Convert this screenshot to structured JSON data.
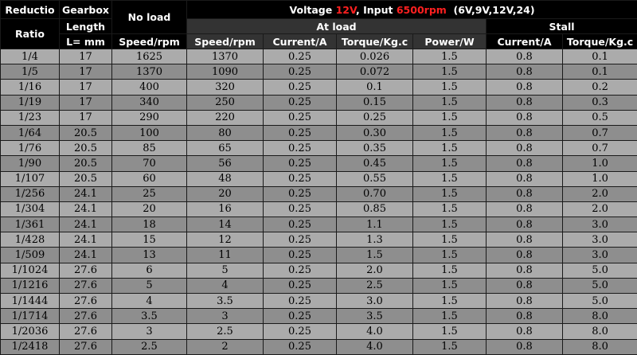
{
  "headers": {
    "ratio_top": "Reductio",
    "ratio_bottom": "Ratio",
    "gearbox_top": "Gearbox",
    "gearbox_mid": "Length",
    "gearbox_bottom": "L= mm",
    "noload_top": "No load",
    "noload_bottom": "Speed/rpm",
    "voltage_label": "Voltage ",
    "voltage_value": "12V",
    "input_label": ", Input ",
    "input_value": "6500rpm",
    "voltage_options": "(6V,9V,12V,24)",
    "atload": "At load",
    "stall": "Stall",
    "col_speed": "Speed/rpm",
    "col_current": "Current/A",
    "col_torque": "Torque/Kg.c",
    "col_power": "Power/W",
    "col_stall_current": "Current/A",
    "col_stall_torque": "Torque/Kg.c"
  },
  "colors": {
    "voltage_value": "#ff2020",
    "input_value": "#ff2020"
  },
  "rows": [
    [
      "1/4",
      "17",
      "1625",
      "1370",
      "0.25",
      "0.026",
      "1.5",
      "0.8",
      "0.1"
    ],
    [
      "1/5",
      "17",
      "1370",
      "1090",
      "0.25",
      "0.072",
      "1.5",
      "0.8",
      "0.1"
    ],
    [
      "1/16",
      "17",
      "400",
      "320",
      "0.25",
      "0.1",
      "1.5",
      "0.8",
      "0.2"
    ],
    [
      "1/19",
      "17",
      "340",
      "250",
      "0.25",
      "0.15",
      "1.5",
      "0.8",
      "0.3"
    ],
    [
      "1/23",
      "17",
      "290",
      "220",
      "0.25",
      "0.25",
      "1.5",
      "0.8",
      "0.5"
    ],
    [
      "1/64",
      "20.5",
      "100",
      "80",
      "0.25",
      "0.30",
      "1.5",
      "0.8",
      "0.7"
    ],
    [
      "1/76",
      "20.5",
      "85",
      "65",
      "0.25",
      "0.35",
      "1.5",
      "0.8",
      "0.7"
    ],
    [
      "1/90",
      "20.5",
      "70",
      "56",
      "0.25",
      "0.45",
      "1.5",
      "0.8",
      "1.0"
    ],
    [
      "1/107",
      "20.5",
      "60",
      "48",
      "0.25",
      "0.55",
      "1.5",
      "0.8",
      "1.0"
    ],
    [
      "1/256",
      "24.1",
      "25",
      "20",
      "0.25",
      "0.70",
      "1.5",
      "0.8",
      "2.0"
    ],
    [
      "1/304",
      "24.1",
      "20",
      "16",
      "0.25",
      "0.85",
      "1.5",
      "0.8",
      "2.0"
    ],
    [
      "1/361",
      "24.1",
      "18",
      "14",
      "0.25",
      "1.1",
      "1.5",
      "0.8",
      "3.0"
    ],
    [
      "1/428",
      "24.1",
      "15",
      "12",
      "0.25",
      "1.3",
      "1.5",
      "0.8",
      "3.0"
    ],
    [
      "1/509",
      "24.1",
      "13",
      "11",
      "0.25",
      "1.5",
      "1.5",
      "0.8",
      "3.0"
    ],
    [
      "1/1024",
      "27.6",
      "6",
      "5",
      "0.25",
      "2.0",
      "1.5",
      "0.8",
      "5.0"
    ],
    [
      "1/1216",
      "27.6",
      "5",
      "4",
      "0.25",
      "2.5",
      "1.5",
      "0.8",
      "5.0"
    ],
    [
      "1/1444",
      "27.6",
      "4",
      "3.5",
      "0.25",
      "3.0",
      "1.5",
      "0.8",
      "5.0"
    ],
    [
      "1/1714",
      "27.6",
      "3.5",
      "3",
      "0.25",
      "3.5",
      "1.5",
      "0.8",
      "8.0"
    ],
    [
      "1/2036",
      "27.6",
      "3",
      "2.5",
      "0.25",
      "4.0",
      "1.5",
      "0.8",
      "8.0"
    ],
    [
      "1/2418",
      "27.6",
      "2.5",
      "2",
      "0.25",
      "4.0",
      "1.5",
      "0.8",
      "8.0"
    ]
  ]
}
